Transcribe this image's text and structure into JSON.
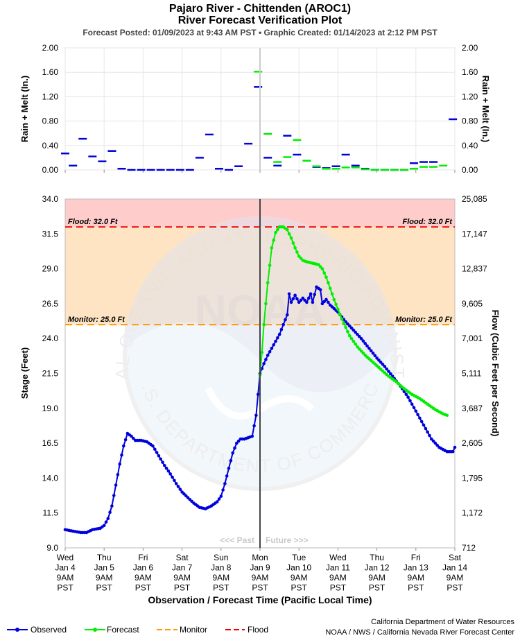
{
  "header": {
    "title_line1": "Pajaro River - Chittenden (AROC1)",
    "title_line2": "River Forecast Verification Plot",
    "subtitle": "Forecast Posted: 01/09/2023 at 9:43 AM PST  •  Graphic Created: 01/14/2023 at 2:12 PM PST"
  },
  "watermark": {
    "ring_text": "NATIONAL OCEANIC AND ATMOSPHERIC ADMINISTRATION",
    "bottom_text": "U.S. DEPARTMENT OF COMMERCE",
    "logo_text": "NOAA"
  },
  "labels": {
    "past": "<<< Past",
    "future": "Future >>>",
    "flood_left": "Flood: 32.0 Ft",
    "flood_right": "Flood: 32.0 Ft",
    "monitor_left": "Monitor: 25.0 Ft",
    "monitor_right": "Monitor: 25.0 Ft"
  },
  "legend": {
    "observed": "Observed",
    "forecast": "Forecast",
    "monitor": "Monitor",
    "flood": "Flood"
  },
  "credits": {
    "line1": "California Department of Water Resources",
    "line2": "NOAA / NWS / California Nevada River Forecast Center"
  },
  "colors": {
    "observed": "#0000dd",
    "forecast": "#00ee00",
    "flood_zone": "#ffcccc",
    "monitor_zone": "#ffe4c4",
    "flood_line": "#ee0000",
    "monitor_line": "#ff9900",
    "now_line": "#444444"
  },
  "chart_data": [
    {
      "type": "line",
      "title": "Rain + Melt",
      "ylabel": "Rain + Melt (In.)",
      "y2label": "Rain + Melt (In.)",
      "yticks": [
        "2.00",
        "1.60",
        "1.20",
        "0.80",
        "0.40",
        "0.00"
      ],
      "y2ticks": [
        "2.00",
        "1.60",
        "1.20",
        "0.80",
        "0.40",
        "0.00"
      ],
      "ylim": [
        0,
        2
      ],
      "xlim_days": [
        0,
        10
      ],
      "now_day": 5,
      "series": [
        {
          "name": "Observed",
          "points": [
            [
              0.0,
              0.27
            ],
            [
              0.2,
              0.07
            ],
            [
              0.45,
              0.51
            ],
            [
              0.7,
              0.22
            ],
            [
              0.95,
              0.14
            ],
            [
              1.2,
              0.31
            ],
            [
              1.45,
              0.02
            ],
            [
              1.7,
              0.0
            ],
            [
              1.95,
              0.0
            ],
            [
              2.2,
              0.0
            ],
            [
              2.45,
              0.0
            ],
            [
              2.7,
              0.0
            ],
            [
              2.95,
              0.0
            ],
            [
              3.2,
              0.0
            ],
            [
              3.45,
              0.2
            ],
            [
              3.7,
              0.58
            ],
            [
              3.95,
              0.02
            ],
            [
              4.2,
              0.0
            ],
            [
              4.45,
              0.06
            ],
            [
              4.7,
              0.43
            ],
            [
              4.95,
              1.36
            ],
            [
              5.2,
              0.2
            ],
            [
              5.45,
              0.07
            ],
            [
              5.7,
              0.56
            ],
            [
              5.95,
              0.25
            ],
            [
              6.2,
              0.15
            ],
            [
              6.45,
              0.05
            ],
            [
              6.7,
              0.03
            ],
            [
              6.95,
              0.06
            ],
            [
              7.2,
              0.25
            ],
            [
              7.45,
              0.07
            ],
            [
              7.7,
              0.02
            ],
            [
              7.95,
              0.0
            ],
            [
              8.2,
              0.0
            ],
            [
              8.45,
              0.0
            ],
            [
              8.7,
              0.0
            ],
            [
              8.95,
              0.11
            ],
            [
              9.2,
              0.13
            ],
            [
              9.45,
              0.13
            ],
            [
              9.95,
              0.83
            ]
          ]
        },
        {
          "name": "Forecast",
          "points": [
            [
              4.95,
              1.61
            ],
            [
              5.2,
              0.59
            ],
            [
              5.45,
              0.13
            ],
            [
              5.7,
              0.21
            ],
            [
              5.95,
              0.49
            ],
            [
              6.2,
              0.15
            ],
            [
              6.45,
              0.06
            ],
            [
              6.7,
              0.02
            ],
            [
              6.95,
              0.02
            ],
            [
              7.2,
              0.04
            ],
            [
              7.45,
              0.04
            ],
            [
              7.7,
              0.01
            ],
            [
              7.95,
              0.0
            ],
            [
              8.2,
              0.0
            ],
            [
              8.45,
              0.0
            ],
            [
              8.7,
              0.0
            ],
            [
              8.95,
              0.02
            ],
            [
              9.2,
              0.05
            ],
            [
              9.45,
              0.05
            ],
            [
              9.7,
              0.07
            ]
          ]
        }
      ]
    },
    {
      "type": "line",
      "title": "River Stage",
      "xlabel": "Observation / Forecast Time (Pacific Local Time)",
      "ylabel": "Stage (Feet)",
      "y2label": "Flow (Cubic Feet per Second)",
      "ylim": [
        9,
        34
      ],
      "yticks": [
        "34.0",
        "31.5",
        "29.0",
        "26.5",
        "24.0",
        "21.5",
        "19.0",
        "16.5",
        "14.0",
        "11.5",
        "9.0"
      ],
      "y2ticks": [
        "25,085",
        "17,147",
        "12,837",
        "9,605",
        "7,001",
        "5,111",
        "3,687",
        "2,605",
        "1,795",
        "1,172",
        "712"
      ],
      "x_categories": [
        [
          "Wed",
          "Jan 4",
          "9AM",
          "PST"
        ],
        [
          "Thu",
          "Jan 5",
          "9AM",
          "PST"
        ],
        [
          "Fri",
          "Jan 6",
          "9AM",
          "PST"
        ],
        [
          "Sat",
          "Jan 7",
          "9AM",
          "PST"
        ],
        [
          "Sun",
          "Jan 8",
          "9AM",
          "PST"
        ],
        [
          "Mon",
          "Jan 9",
          "9AM",
          "PST"
        ],
        [
          "Tue",
          "Jan 10",
          "9AM",
          "PST"
        ],
        [
          "Wed",
          "Jan 11",
          "9AM",
          "PST"
        ],
        [
          "Thu",
          "Jan 12",
          "9AM",
          "PST"
        ],
        [
          "Fri",
          "Jan 13",
          "9AM",
          "PST"
        ],
        [
          "Sat",
          "Jan 14",
          "9AM",
          "PST"
        ]
      ],
      "flood_stage": 32.0,
      "monitor_stage": 25.0,
      "now_day": 5,
      "series": [
        {
          "name": "Observed",
          "points": [
            [
              0,
              10.3
            ],
            [
              0.2,
              10.2
            ],
            [
              0.4,
              10.1
            ],
            [
              0.55,
              10.1
            ],
            [
              0.7,
              10.3
            ],
            [
              0.9,
              10.4
            ],
            [
              1.0,
              10.6
            ],
            [
              1.1,
              11.1
            ],
            [
              1.2,
              12.0
            ],
            [
              1.3,
              13.5
            ],
            [
              1.4,
              15.0
            ],
            [
              1.5,
              16.3
            ],
            [
              1.6,
              17.2
            ],
            [
              1.7,
              17.0
            ],
            [
              1.8,
              16.7
            ],
            [
              1.95,
              16.7
            ],
            [
              2.1,
              16.6
            ],
            [
              2.25,
              16.3
            ],
            [
              2.4,
              15.6
            ],
            [
              2.55,
              14.9
            ],
            [
              2.7,
              14.3
            ],
            [
              2.85,
              13.6
            ],
            [
              3.0,
              13.0
            ],
            [
              3.15,
              12.6
            ],
            [
              3.3,
              12.2
            ],
            [
              3.45,
              11.9
            ],
            [
              3.6,
              11.8
            ],
            [
              3.75,
              12.0
            ],
            [
              3.9,
              12.3
            ],
            [
              4.0,
              12.7
            ],
            [
              4.1,
              13.6
            ],
            [
              4.2,
              14.7
            ],
            [
              4.3,
              15.8
            ],
            [
              4.4,
              16.5
            ],
            [
              4.5,
              16.8
            ],
            [
              4.6,
              16.8
            ],
            [
              4.7,
              16.9
            ],
            [
              4.8,
              17.0
            ],
            [
              4.9,
              18.5
            ],
            [
              5.0,
              21.5
            ],
            [
              5.1,
              22.2
            ],
            [
              5.2,
              22.8
            ],
            [
              5.3,
              23.3
            ],
            [
              5.4,
              23.8
            ],
            [
              5.5,
              24.3
            ],
            [
              5.6,
              25.0
            ],
            [
              5.7,
              25.7
            ],
            [
              5.75,
              27.2
            ],
            [
              5.8,
              26.6
            ],
            [
              5.9,
              27.1
            ],
            [
              6.0,
              26.6
            ],
            [
              6.1,
              26.9
            ],
            [
              6.2,
              26.6
            ],
            [
              6.3,
              27.2
            ],
            [
              6.35,
              26.6
            ],
            [
              6.45,
              27.7
            ],
            [
              6.55,
              27.5
            ],
            [
              6.6,
              26.5
            ],
            [
              6.7,
              26.8
            ],
            [
              6.8,
              26.4
            ],
            [
              7.0,
              25.9
            ],
            [
              7.2,
              25.2
            ],
            [
              7.4,
              24.6
            ],
            [
              7.6,
              24.0
            ],
            [
              7.8,
              23.3
            ],
            [
              8.0,
              22.6
            ],
            [
              8.2,
              22.0
            ],
            [
              8.4,
              21.3
            ],
            [
              8.6,
              20.6
            ],
            [
              8.8,
              19.8
            ],
            [
              9.0,
              18.8
            ],
            [
              9.2,
              17.8
            ],
            [
              9.4,
              16.8
            ],
            [
              9.6,
              16.2
            ],
            [
              9.8,
              15.9
            ],
            [
              9.95,
              15.9
            ],
            [
              10.0,
              16.2
            ]
          ]
        },
        {
          "name": "Forecast",
          "points": [
            [
              5.0,
              21.4
            ],
            [
              5.05,
              23.0
            ],
            [
              5.1,
              25.0
            ],
            [
              5.2,
              28.0
            ],
            [
              5.3,
              30.5
            ],
            [
              5.4,
              31.6
            ],
            [
              5.5,
              32.0
            ],
            [
              5.6,
              32.0
            ],
            [
              5.7,
              31.8
            ],
            [
              5.8,
              31.2
            ],
            [
              5.9,
              30.5
            ],
            [
              6.0,
              29.9
            ],
            [
              6.1,
              29.6
            ],
            [
              6.2,
              29.5
            ],
            [
              6.35,
              29.4
            ],
            [
              6.5,
              29.3
            ],
            [
              6.6,
              29.0
            ],
            [
              6.7,
              28.4
            ],
            [
              6.8,
              27.6
            ],
            [
              6.9,
              26.8
            ],
            [
              7.0,
              26.1
            ],
            [
              7.1,
              25.4
            ],
            [
              7.2,
              24.8
            ],
            [
              7.3,
              24.2
            ],
            [
              7.4,
              23.8
            ],
            [
              7.5,
              23.4
            ],
            [
              7.7,
              22.8
            ],
            [
              7.9,
              22.3
            ],
            [
              8.1,
              21.8
            ],
            [
              8.3,
              21.3
            ],
            [
              8.5,
              20.9
            ],
            [
              8.7,
              20.4
            ],
            [
              8.9,
              20.0
            ],
            [
              9.1,
              19.7
            ],
            [
              9.3,
              19.3
            ],
            [
              9.5,
              18.9
            ],
            [
              9.7,
              18.6
            ],
            [
              9.8,
              18.5
            ]
          ]
        }
      ]
    }
  ]
}
